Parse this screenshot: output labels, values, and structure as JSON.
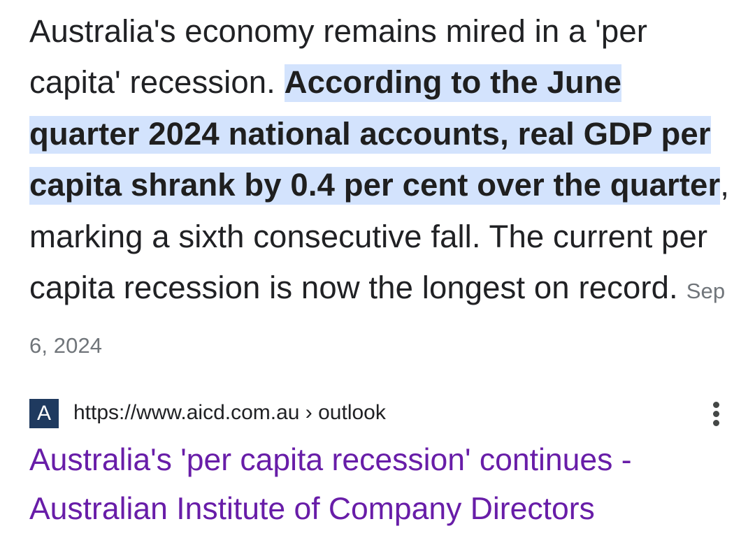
{
  "snippet": {
    "text_before": "Australia's economy remains mired in a 'per capita' recession. ",
    "highlighted": "According to the June quarter 2024 national accounts, real GDP per capita shrank by 0.4 per cent over the quarter",
    "text_after": ", marking a sixth consecutive fall. The current per capita recession is now the longest on record.",
    "date": "Sep 6, 2024"
  },
  "source": {
    "favicon_letter": "A",
    "url": "https://www.aicd.com.au › outlook",
    "title": "Australia's 'per capita recession' continues - Australian Institute of Company Directors",
    "menu_icon": "more-vert-icon"
  },
  "colors": {
    "highlight": "#d3e3fd",
    "visited_link": "#681da8",
    "text": "#202124",
    "date": "#70757a",
    "favicon_bg": "#1f3a5f"
  }
}
